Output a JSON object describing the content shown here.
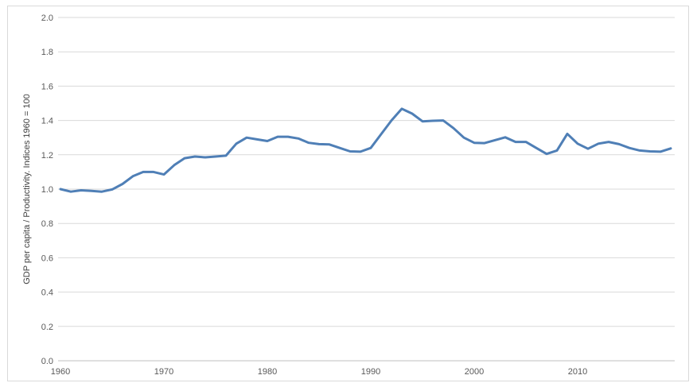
{
  "chart_data": {
    "type": "line",
    "title": "",
    "xlabel": "",
    "ylabel": "GDP per capita / Productivity. Indices 1960 = 100",
    "xlim": [
      1960,
      2019
    ],
    "ylim": [
      0,
      2.0
    ],
    "x_ticks": [
      "1960",
      "1970",
      "1980",
      "1990",
      "2000",
      "2010"
    ],
    "y_ticks": [
      "0.0",
      "0.2",
      "0.4",
      "0.6",
      "0.8",
      "1.0",
      "1.2",
      "1.4",
      "1.6",
      "1.8",
      "2.0"
    ],
    "grid": true,
    "legend": "none",
    "series": [
      {
        "color": "#4f7fb6",
        "x": [
          1960,
          1961,
          1962,
          1963,
          1964,
          1965,
          1966,
          1967,
          1968,
          1969,
          1970,
          1971,
          1972,
          1973,
          1974,
          1975,
          1976,
          1977,
          1978,
          1979,
          1980,
          1981,
          1982,
          1983,
          1984,
          1985,
          1986,
          1987,
          1988,
          1989,
          1990,
          1991,
          1992,
          1993,
          1994,
          1995,
          1996,
          1997,
          1998,
          1999,
          2000,
          2001,
          2002,
          2003,
          2004,
          2005,
          2006,
          2007,
          2008,
          2009,
          2010,
          2011,
          2012,
          2013,
          2014,
          2015,
          2016,
          2017,
          2018,
          2019
        ],
        "y": [
          1.0,
          0.985,
          0.993,
          0.99,
          0.985,
          0.998,
          1.03,
          1.075,
          1.1,
          1.1,
          1.085,
          1.14,
          1.18,
          1.19,
          1.185,
          1.19,
          1.195,
          1.265,
          1.3,
          1.29,
          1.28,
          1.305,
          1.305,
          1.295,
          1.27,
          1.262,
          1.26,
          1.24,
          1.22,
          1.218,
          1.24,
          1.32,
          1.4,
          1.468,
          1.44,
          1.395,
          1.398,
          1.4,
          1.355,
          1.3,
          1.27,
          1.268,
          1.285,
          1.302,
          1.275,
          1.275,
          1.24,
          1.205,
          1.225,
          1.322,
          1.265,
          1.235,
          1.265,
          1.275,
          1.262,
          1.24,
          1.225,
          1.22,
          1.218,
          1.237
        ]
      }
    ]
  }
}
